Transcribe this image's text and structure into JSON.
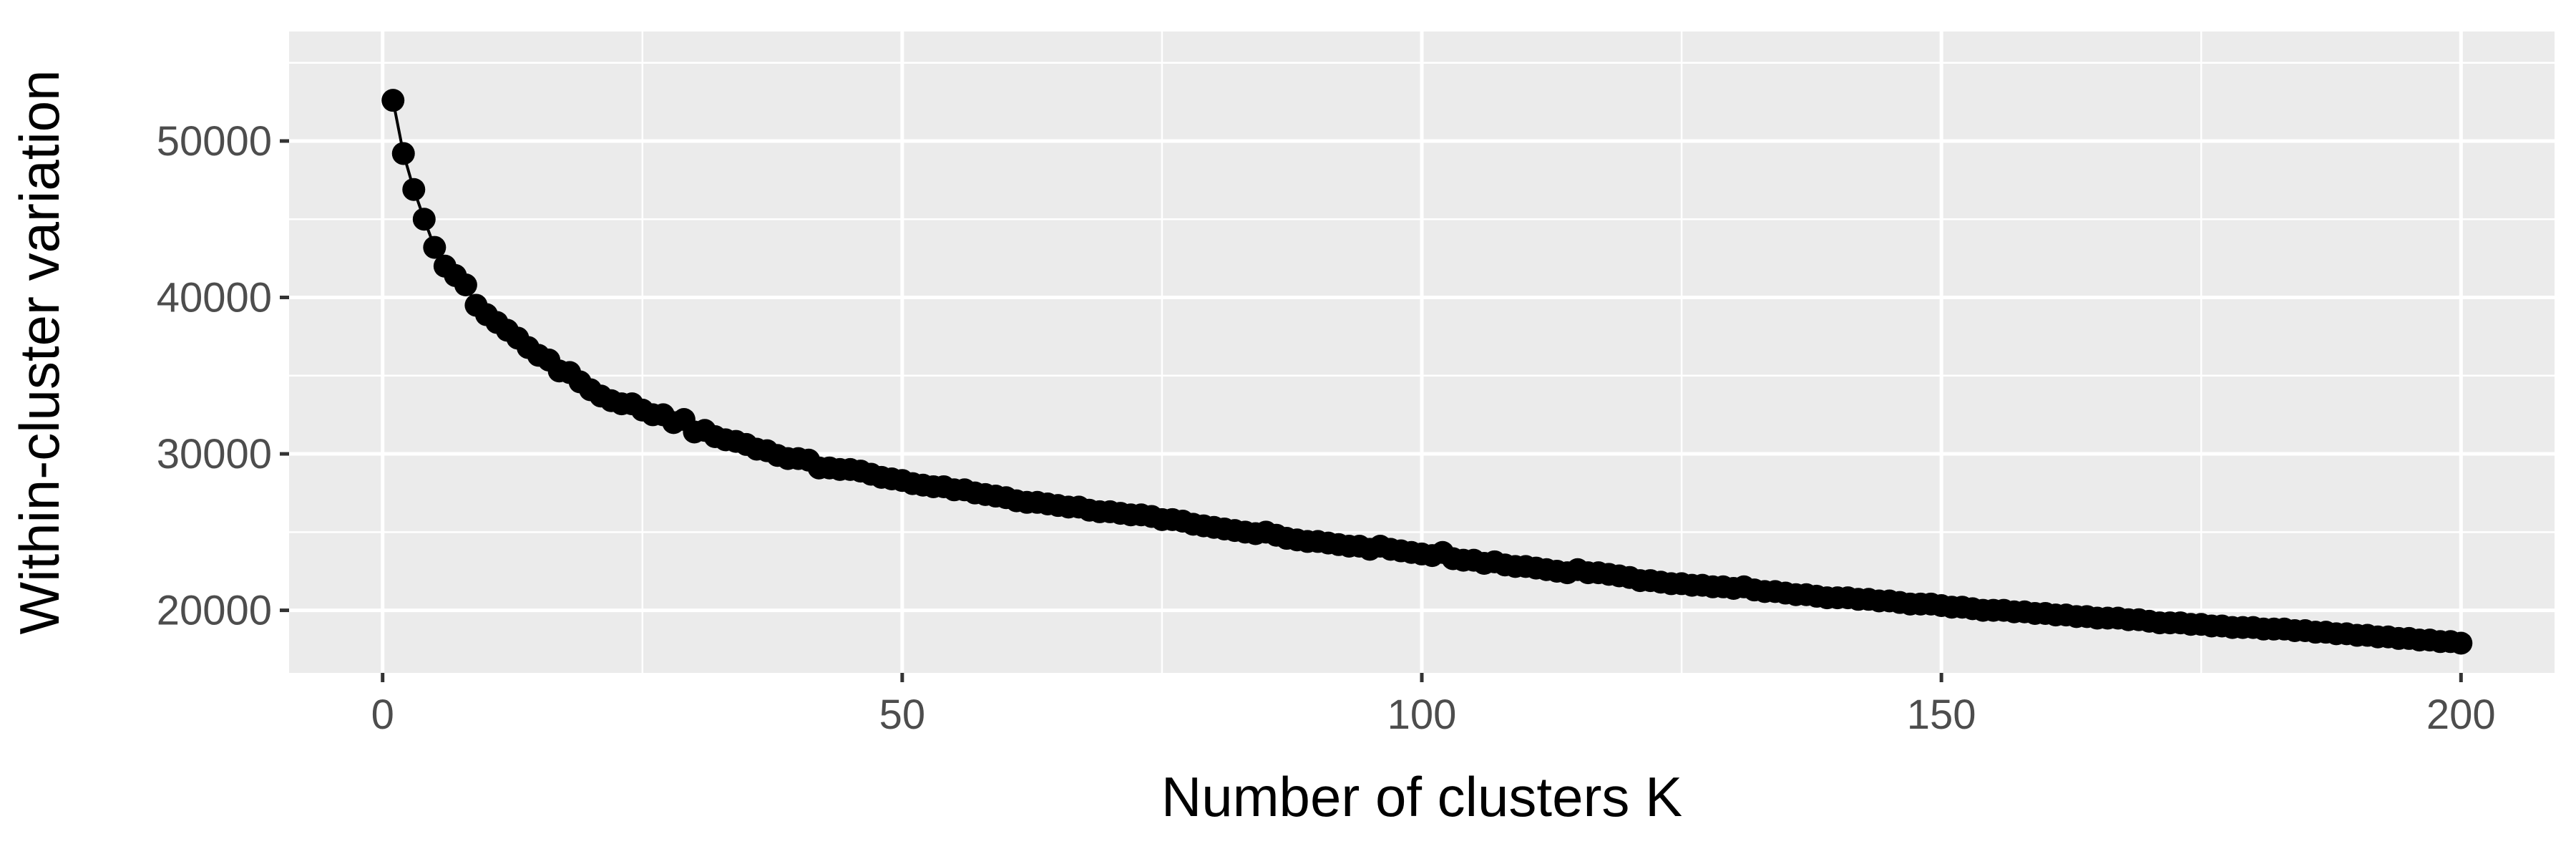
{
  "chart_data": {
    "type": "line",
    "title": "",
    "xlabel": "Number of clusters K",
    "ylabel": "Within-cluster variation",
    "xlim": [
      -9,
      209
    ],
    "ylim": [
      16000,
      57000
    ],
    "x_ticks": [
      0,
      50,
      100,
      150,
      200
    ],
    "x_tick_labels": [
      "0",
      "50",
      "100",
      "150",
      "200"
    ],
    "y_ticks": [
      20000,
      30000,
      40000,
      50000
    ],
    "y_tick_labels": [
      "20000",
      "30000",
      "40000",
      "50000"
    ],
    "grid": true,
    "markers": true,
    "colors": {
      "panel": "#ebebeb",
      "grid": "#ffffff",
      "series": "#000000",
      "tick_text": "#4d4d4d"
    },
    "x": [
      1,
      2,
      3,
      4,
      5,
      6,
      7,
      8,
      9,
      10,
      11,
      12,
      13,
      14,
      15,
      16,
      17,
      18,
      19,
      20,
      21,
      22,
      23,
      24,
      25,
      26,
      27,
      28,
      29,
      30,
      31,
      32,
      33,
      34,
      35,
      36,
      37,
      38,
      39,
      40,
      41,
      42,
      43,
      44,
      45,
      46,
      47,
      48,
      49,
      50,
      51,
      52,
      53,
      54,
      55,
      56,
      57,
      58,
      59,
      60,
      61,
      62,
      63,
      64,
      65,
      66,
      67,
      68,
      69,
      70,
      71,
      72,
      73,
      74,
      75,
      76,
      77,
      78,
      79,
      80,
      81,
      82,
      83,
      84,
      85,
      86,
      87,
      88,
      89,
      90,
      91,
      92,
      93,
      94,
      95,
      96,
      97,
      98,
      99,
      100,
      101,
      102,
      103,
      104,
      105,
      106,
      107,
      108,
      109,
      110,
      111,
      112,
      113,
      114,
      115,
      116,
      117,
      118,
      119,
      120,
      121,
      122,
      123,
      124,
      125,
      126,
      127,
      128,
      129,
      130,
      131,
      132,
      133,
      134,
      135,
      136,
      137,
      138,
      139,
      140,
      141,
      142,
      143,
      144,
      145,
      146,
      147,
      148,
      149,
      150,
      151,
      152,
      153,
      154,
      155,
      156,
      157,
      158,
      159,
      160,
      161,
      162,
      163,
      164,
      165,
      166,
      167,
      168,
      169,
      170,
      171,
      172,
      173,
      174,
      175,
      176,
      177,
      178,
      179,
      180,
      181,
      182,
      183,
      184,
      185,
      186,
      187,
      188,
      189,
      190,
      191,
      192,
      193,
      194,
      195,
      196,
      197,
      198,
      199,
      200
    ],
    "y": [
      52600,
      49200,
      46900,
      45000,
      43200,
      42000,
      41400,
      40800,
      39500,
      38900,
      38400,
      37900,
      37400,
      36800,
      36300,
      36000,
      35300,
      35200,
      34600,
      34100,
      33700,
      33400,
      33200,
      33200,
      32800,
      32500,
      32500,
      32000,
      32200,
      31400,
      31500,
      31100,
      30900,
      30800,
      30600,
      30300,
      30200,
      29900,
      29700,
      29700,
      29600,
      29100,
      29100,
      29000,
      29000,
      28900,
      28700,
      28500,
      28400,
      28300,
      28100,
      28000,
      27900,
      27900,
      27700,
      27700,
      27500,
      27400,
      27300,
      27200,
      27000,
      26900,
      26900,
      26800,
      26700,
      26600,
      26600,
      26400,
      26300,
      26300,
      26200,
      26100,
      26100,
      26000,
      25800,
      25800,
      25700,
      25500,
      25400,
      25300,
      25200,
      25100,
      25000,
      24900,
      25000,
      24800,
      24600,
      24500,
      24400,
      24400,
      24300,
      24200,
      24100,
      24100,
      23900,
      24100,
      23900,
      23800,
      23700,
      23600,
      23500,
      23700,
      23300,
      23200,
      23200,
      23000,
      23100,
      22900,
      22800,
      22800,
      22700,
      22600,
      22500,
      22400,
      22600,
      22400,
      22400,
      22300,
      22200,
      22100,
      21900,
      21900,
      21800,
      21700,
      21700,
      21600,
      21600,
      21500,
      21500,
      21400,
      21500,
      21300,
      21200,
      21200,
      21100,
      21000,
      21000,
      20900,
      20800,
      20800,
      20800,
      20700,
      20700,
      20600,
      20600,
      20500,
      20400,
      20400,
      20400,
      20300,
      20200,
      20200,
      20100,
      20000,
      20000,
      20000,
      19900,
      19900,
      19800,
      19800,
      19700,
      19700,
      19600,
      19600,
      19500,
      19500,
      19500,
      19400,
      19400,
      19300,
      19200,
      19200,
      19200,
      19100,
      19100,
      19000,
      19000,
      18900,
      18900,
      18900,
      18800,
      18800,
      18800,
      18700,
      18700,
      18600,
      18600,
      18500,
      18500,
      18400,
      18400,
      18300,
      18300,
      18200,
      18200,
      18100,
      18100,
      18000,
      18000,
      17900
    ]
  }
}
